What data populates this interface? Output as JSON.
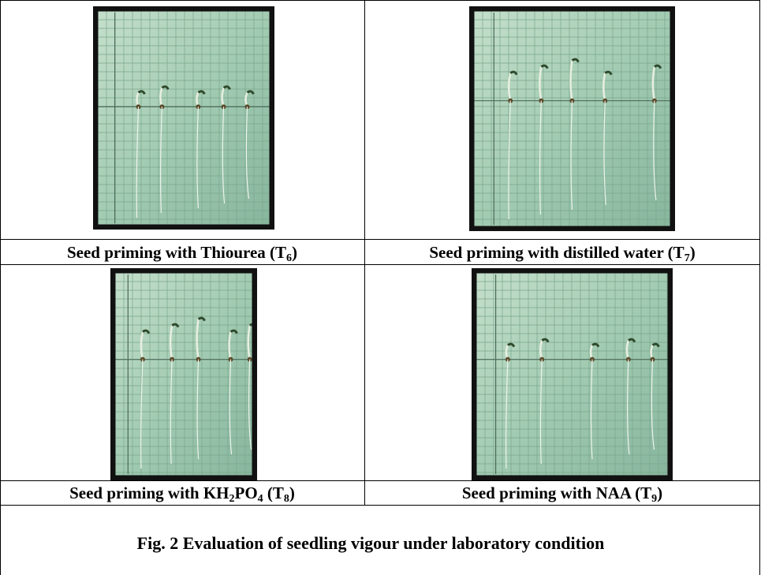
{
  "panels": [
    {
      "caption": [
        {
          "text": "Seed priming with Thiourea (T"
        },
        {
          "sub": "6"
        },
        {
          "text": ")"
        }
      ]
    },
    {
      "caption": [
        {
          "text": "Seed priming with distilled water (T"
        },
        {
          "sub": "7"
        },
        {
          "text": ")"
        }
      ]
    },
    {
      "caption": [
        {
          "text": "Seed priming with KH"
        },
        {
          "sub": "2"
        },
        {
          "text": "PO"
        },
        {
          "sub": "4"
        },
        {
          "text": " (T"
        },
        {
          "sub": "8"
        },
        {
          "text": ")"
        }
      ]
    },
    {
      "caption": [
        {
          "text": "Seed priming with NAA (T"
        },
        {
          "sub": "9"
        },
        {
          "text": ")"
        }
      ]
    }
  ],
  "figure_caption": "Fig. 2 Evaluation of seedling vigour under laboratory condition"
}
